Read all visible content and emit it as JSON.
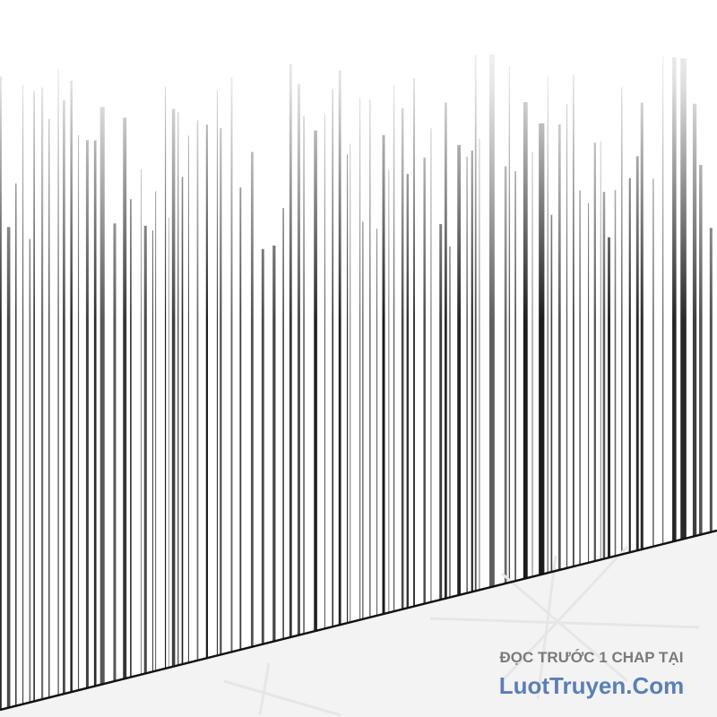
{
  "watermark": {
    "line1": "ĐỌC TRƯỚC 1 CHAP TẠI",
    "line2": "LuotTruyen.Com"
  },
  "colors": {
    "lines": "#1a1a1a",
    "ground": "#f2f2f2",
    "watermark_gray": "#7a7a7a",
    "watermark_blue": "#5b7fb5"
  }
}
